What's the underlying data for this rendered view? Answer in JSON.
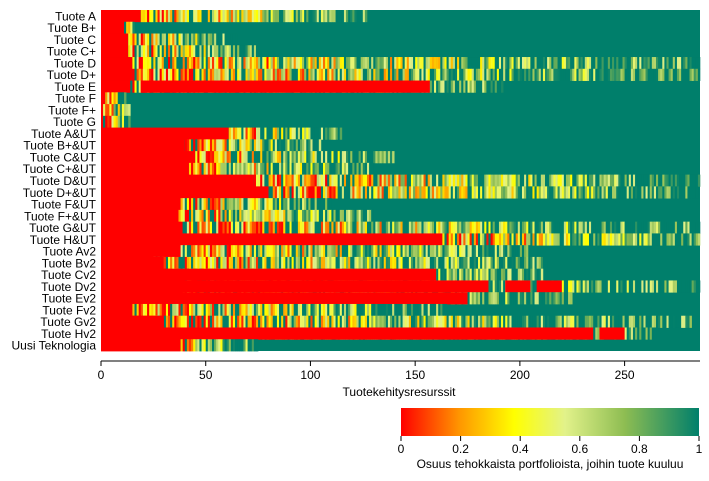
{
  "chart_data": {
    "type": "heatmap",
    "title": "",
    "xlabel": "Tuotekehitysresurssit",
    "ylabel": "",
    "xlim": [
      0,
      286
    ],
    "xticks": [
      0,
      50,
      100,
      150,
      200,
      250
    ],
    "row_labels": [
      "Tuote A",
      "Tuote B+",
      "Tuote C",
      "Tuote C+",
      "Tuote D",
      "Tuote  D+",
      "Tuote E",
      "Tuote F",
      "Tuote F+",
      "Tuote G",
      "Tuote A&UT",
      "Tuote B+&UT",
      "Tuote C&UT",
      "Tuote C+&UT",
      "Tuote D&UT",
      "Tuote D+&UT",
      "Tuote F&UT",
      "Tuote F+&UT",
      "Tuote G&UT",
      "Tuote H&UT",
      "Tuote Av2",
      "Tuote Bv2",
      "Tuote Cv2",
      "Tuote Dv2",
      "Tuote Ev2",
      "Tuote Fv2",
      "Tuote Gv2",
      "Tuote Hv2",
      "Uusi Teknologia"
    ],
    "red_until": [
      19,
      11,
      13,
      13,
      15,
      15,
      14,
      2,
      1,
      1,
      61,
      40,
      45,
      42,
      73,
      80,
      38,
      37,
      39,
      163,
      38,
      24,
      31,
      40,
      39,
      15,
      25,
      42,
      38
    ],
    "mixed_until": [
      127,
      16,
      65,
      75,
      300,
      295,
      192,
      12,
      14,
      14,
      115,
      105,
      140,
      130,
      290,
      285,
      110,
      130,
      286,
      286,
      205,
      213,
      211,
      290,
      225,
      165,
      282,
      265,
      75
    ],
    "solid_red_spans": [
      [],
      [],
      [],
      [],
      [],
      [],
      [
        [
          19,
          157
        ]
      ],
      [],
      [],
      [],
      [],
      [],
      [],
      [],
      [],
      [],
      [],
      [],
      [],
      [],
      [],
      [
        [
          0,
          30
        ]
      ],
      [
        [
          0,
          160
        ]
      ],
      [
        [
          0,
          185
        ],
        [
          193,
          205
        ],
        [
          208,
          220
        ]
      ],
      [
        [
          0,
          175
        ]
      ],
      [],
      [
        [
          0,
          30
        ]
      ],
      [
        [
          0,
          235
        ],
        [
          238,
          250
        ]
      ],
      []
    ],
    "colorbar": {
      "min": 0,
      "max": 1,
      "ticks": [
        "0",
        "0.2",
        "0.4",
        "0.6",
        "0.8",
        "1"
      ],
      "label": "Osuus tehokkaista portfolioista, joihin tuote kuuluu",
      "stops": [
        "#ff0000",
        "#ff9900",
        "#ffff00",
        "#e2f28a",
        "#8ebd52",
        "#007f6b"
      ]
    }
  }
}
